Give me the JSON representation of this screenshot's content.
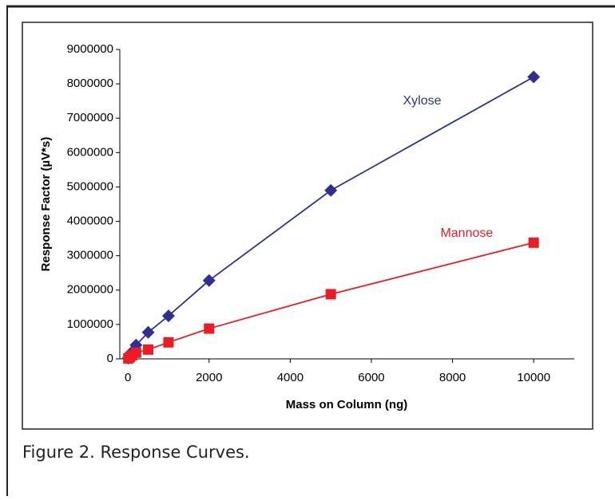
{
  "chart_data": {
    "type": "scatter-line",
    "caption": "Figure 2. Response Curves.",
    "x_label": "Mass on Column (ng)",
    "y_label": "Response Factor (µV*s)",
    "xlim": [
      -200,
      11000
    ],
    "xticks": [
      0,
      2000,
      4000,
      6000,
      8000,
      10000
    ],
    "ylim": [
      0,
      9000000
    ],
    "yticks": [
      0,
      1000000,
      2000000,
      3000000,
      4000000,
      5000000,
      6000000,
      7000000,
      8000000,
      9000000
    ],
    "series": [
      {
        "name": "Xylose",
        "color": "#2e3192",
        "marker": "diamond",
        "x": [
          10,
          50,
          100,
          200,
          500,
          1000,
          2000,
          5000,
          10000
        ],
        "values": [
          20000,
          100000,
          200000,
          400000,
          770000,
          1250000,
          2280000,
          4900000,
          8200000
        ],
        "label_pos": [
          7250,
          7500000
        ]
      },
      {
        "name": "Mannose",
        "color": "#ed1c24",
        "marker": "square",
        "x": [
          10,
          50,
          100,
          200,
          500,
          1000,
          2000,
          5000,
          10000
        ],
        "values": [
          10000,
          50000,
          100000,
          180000,
          270000,
          480000,
          880000,
          1880000,
          3380000
        ],
        "label_pos": [
          8350,
          3650000
        ]
      }
    ]
  }
}
